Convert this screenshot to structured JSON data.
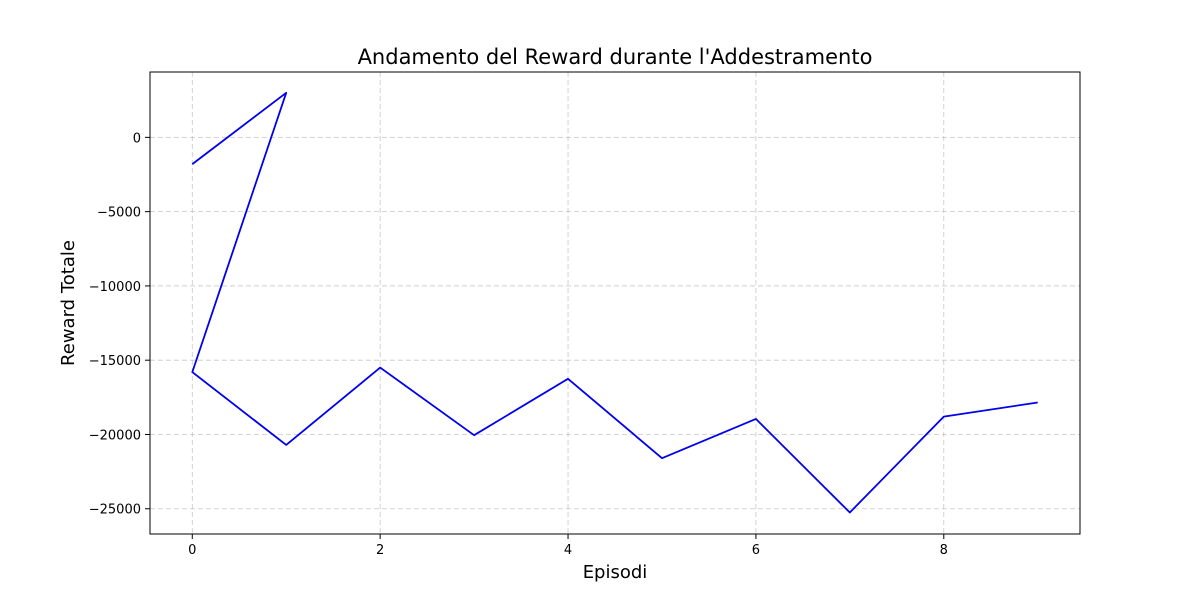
{
  "chart_data": {
    "type": "line",
    "title": "Andamento del Reward durante l'Addestramento",
    "xlabel": "Episodi",
    "ylabel": "Reward Totale",
    "xlim": [
      -0.45,
      9.45
    ],
    "ylim": [
      -26700,
      4400
    ],
    "xticks": [
      0,
      2,
      4,
      6,
      8
    ],
    "yticks": [
      0,
      -5000,
      -10000,
      -15000,
      -20000,
      -25000
    ],
    "grid": true,
    "legend": "none",
    "series": [
      {
        "color": "#0000ee",
        "x": [
          0,
          1,
          0,
          1,
          2,
          3,
          4,
          5,
          6,
          7,
          8,
          9
        ],
        "y": [
          -1800,
          3000,
          -15800,
          -20700,
          -15500,
          -20050,
          -16250,
          -21600,
          -18950,
          -25250,
          -18800,
          -17850
        ]
      }
    ]
  }
}
